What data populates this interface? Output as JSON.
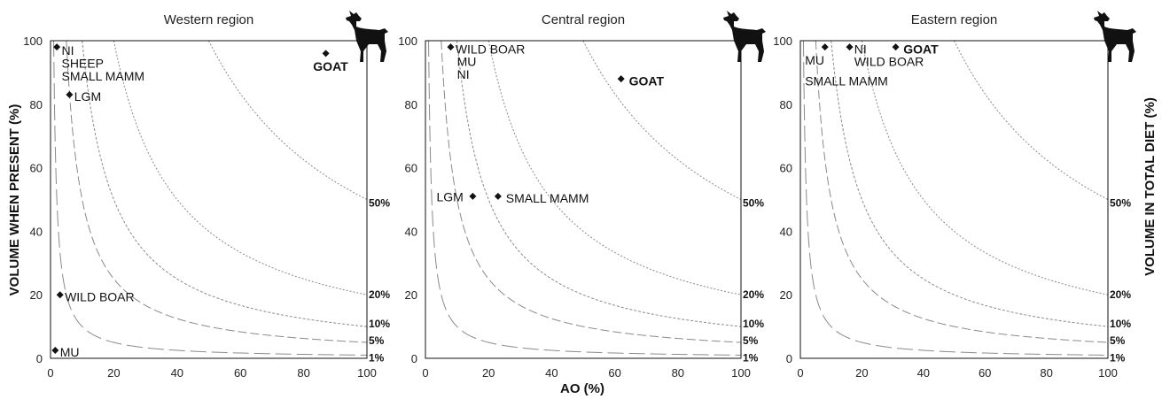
{
  "chart_data": {
    "type": "scatter",
    "xlabel": "AO (%)",
    "ylabel": "VOLUME WHEN PRESENT (%)",
    "y2label": "VOLUME IN TOTAL DIET (%)",
    "xlim": [
      0,
      100
    ],
    "ylim": [
      0,
      100
    ],
    "xticks": [
      "0",
      "20",
      "40",
      "60",
      "80",
      "100"
    ],
    "yticks": [
      "0",
      "20",
      "40",
      "60",
      "80",
      "100"
    ],
    "icon": "dog-silhouette-icon",
    "isolines": [
      {
        "label": "1%",
        "k": 1
      },
      {
        "label": "5%",
        "k": 5
      },
      {
        "label": "10%",
        "k": 10
      },
      {
        "label": "20%",
        "k": 20
      },
      {
        "label": "50%",
        "k": 50
      }
    ],
    "panels": [
      {
        "title": "Western region",
        "points": [
          {
            "x": 2,
            "y": 98
          },
          {
            "x": 6,
            "y": 83
          },
          {
            "x": 87,
            "y": 96
          },
          {
            "x": 3,
            "y": 20
          },
          {
            "x": 1.5,
            "y": 2.5
          }
        ],
        "labels": [
          {
            "text": "NI",
            "x": 3.5,
            "y": 95.5,
            "bold": false
          },
          {
            "text": "SHEEP",
            "x": 3.5,
            "y": 91.5,
            "bold": false
          },
          {
            "text": "SMALL MAMM",
            "x": 3.5,
            "y": 87.5,
            "bold": false
          },
          {
            "text": "LGM",
            "x": 7.5,
            "y": 81,
            "bold": false
          },
          {
            "text": "GOAT",
            "x": 83,
            "y": 90.5,
            "bold": true
          },
          {
            "text": "WILD BOAR",
            "x": 4.5,
            "y": 18,
            "bold": false
          },
          {
            "text": "MU",
            "x": 3,
            "y": 0.5,
            "bold": false
          }
        ]
      },
      {
        "title": "Central region",
        "points": [
          {
            "x": 8,
            "y": 98
          },
          {
            "x": 62,
            "y": 88
          },
          {
            "x": 15,
            "y": 51
          },
          {
            "x": 23,
            "y": 51
          }
        ],
        "labels": [
          {
            "text": "WILD BOAR",
            "x": 9.5,
            "y": 96,
            "bold": false
          },
          {
            "text": "MU",
            "x": 10,
            "y": 92,
            "bold": false
          },
          {
            "text": "NI",
            "x": 10,
            "y": 88,
            "bold": false
          },
          {
            "text": "GOAT",
            "x": 64.5,
            "y": 86,
            "bold": true
          },
          {
            "text": "LGM",
            "x": 3.5,
            "y": 49.5,
            "bold": false
          },
          {
            "text": "SMALL MAMM",
            "x": 25.5,
            "y": 49,
            "bold": false
          }
        ]
      },
      {
        "title": "Eastern region",
        "points": [
          {
            "x": 8,
            "y": 98
          },
          {
            "x": 16,
            "y": 98
          },
          {
            "x": 31,
            "y": 98
          }
        ],
        "labels": [
          {
            "text": "MU",
            "x": 1.5,
            "y": 92.5,
            "bold": false
          },
          {
            "text": "SMALL MAMM",
            "x": 1.5,
            "y": 86,
            "bold": false
          },
          {
            "text": "NI",
            "x": 17.5,
            "y": 96,
            "bold": false
          },
          {
            "text": "GOAT",
            "x": 33.5,
            "y": 96,
            "bold": true
          },
          {
            "text": "WILD BOAR",
            "x": 17.5,
            "y": 92,
            "bold": false
          }
        ]
      }
    ]
  }
}
